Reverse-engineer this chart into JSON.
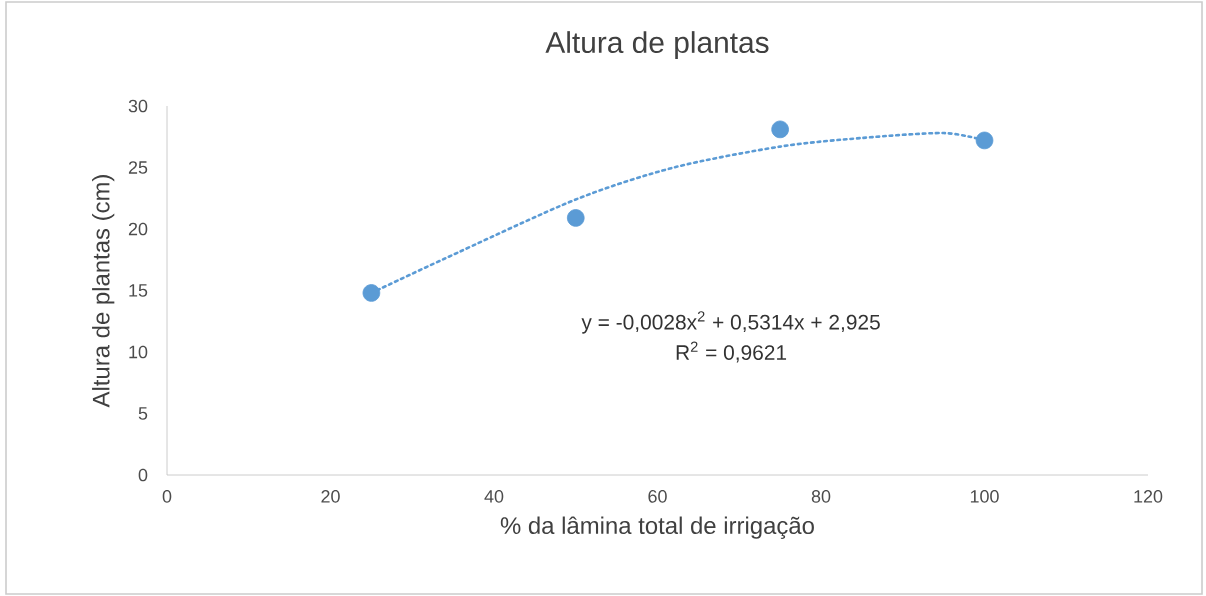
{
  "chart_data": {
    "type": "scatter",
    "title": "Altura de plantas",
    "xlabel": "% da lâmina total de irrigação",
    "ylabel": "Altura de plantas (cm)",
    "xlim": [
      0,
      120
    ],
    "xticks": [
      0,
      20,
      40,
      60,
      80,
      100,
      120
    ],
    "ylim": [
      0,
      30
    ],
    "yticks": [
      0,
      5,
      10,
      15,
      20,
      25,
      30
    ],
    "grid": false,
    "series": [
      {
        "color": "#5b9bd5",
        "marker": "circle",
        "x": [
          25,
          50,
          75,
          100
        ],
        "values": [
          14.8,
          20.9,
          28.1,
          27.2
        ]
      },
      {
        "type": "line",
        "color": "#5b9bd5",
        "line_style": "dotted",
        "marker": "none",
        "x": [
          25,
          34,
          50,
          62,
          75,
          85,
          95,
          100
        ],
        "values": [
          14.8,
          17.6,
          22.4,
          25.0,
          26.7,
          27.4,
          27.8,
          27.2
        ]
      }
    ],
    "annotations": [
      "y = -0,0028x$^{2}$ + 0,5314x + 2,925",
      "R$^{2}$ = 0,9621"
    ]
  }
}
